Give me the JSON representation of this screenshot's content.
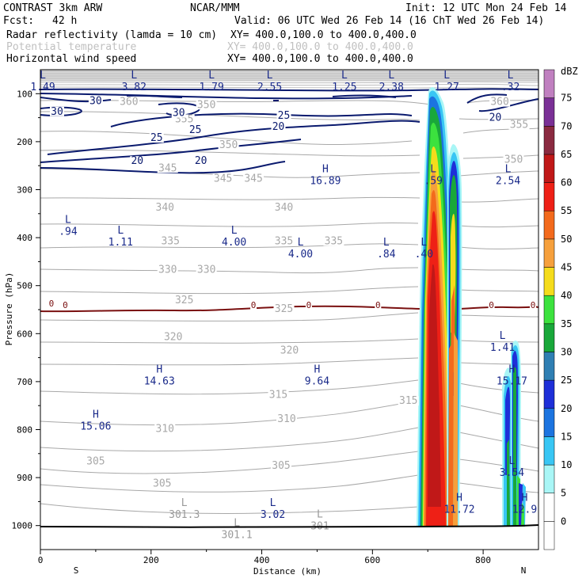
{
  "header": {
    "model": "CONTRAST  3km ARW",
    "org": "NCAR/MMM",
    "init": "Init: 12 UTC Mon 24 Feb 14",
    "fcst_label": "Fcst:",
    "fcst_value": "42 h",
    "valid": "Valid: 06 UTC Wed 26 Feb 14 (16 ChT Wed 26 Feb 14)",
    "line1_name": "Radar reflectivity (lamda = 10 cm)",
    "line1_xy": "XY= 400.0,100.0 to 400.0,400.0",
    "line2_name": "Potential temperature",
    "line2_xy": "XY= 400.0,100.0 to 400.0,400.0",
    "line3_name": "Horizontal wind speed",
    "line3_xy": "XY= 400.0,100.0 to 400.0,400.0"
  },
  "colors": {
    "wind": "#0a1a6e",
    "theta": "#a8a8a8",
    "freezing": "#7a1010",
    "hl": "#1a2a8a",
    "hl_theta": "#9a9a9a"
  },
  "chart_data": {
    "type": "cross-section",
    "xlabel": "Distance (km)",
    "ylabel": "Pressure (hPa)",
    "xlim": [
      0,
      900
    ],
    "ylim": [
      1050,
      50
    ],
    "x_ticks": [
      "0",
      "200",
      "400",
      "600",
      "800"
    ],
    "y_ticks": [
      "100",
      "200",
      "300",
      "400",
      "500",
      "600",
      "700",
      "800",
      "900",
      "1000"
    ],
    "end_left": "S",
    "end_right": "N",
    "colorbar": {
      "unit": "dBZ",
      "levels": [
        "0",
        "5",
        "10",
        "15",
        "20",
        "25",
        "30",
        "35",
        "40",
        "45",
        "50",
        "55",
        "60",
        "65",
        "70",
        "75"
      ],
      "colors": [
        "#ffffff",
        "#a9f6f6",
        "#38c6f4",
        "#1c74e0",
        "#1e2fd8",
        "#2f7fb3",
        "#19a83a",
        "#3ce23e",
        "#f5dc1c",
        "#f6a03c",
        "#f36a1c",
        "#ee2016",
        "#c01818",
        "#8a2a40",
        "#7a3096",
        "#c080c0"
      ]
    },
    "theta_labels": [
      {
        "t": "360",
        "x": 160,
        "p": 122
      },
      {
        "t": "350",
        "x": 300,
        "p": 128
      },
      {
        "t": "360",
        "x": 830,
        "p": 122
      },
      {
        "t": "355",
        "x": 260,
        "p": 158
      },
      {
        "t": "355",
        "x": 865,
        "p": 170
      },
      {
        "t": "350",
        "x": 340,
        "p": 212
      },
      {
        "t": "350",
        "x": 855,
        "p": 242
      },
      {
        "t": "345",
        "x": 230,
        "p": 260
      },
      {
        "t": "345",
        "x": 385,
        "p": 282
      },
      {
        "t": "345",
        "x": 330,
        "p": 282
      },
      {
        "t": "340",
        "x": 225,
        "p": 342
      },
      {
        "t": "340",
        "x": 440,
        "p": 342
      },
      {
        "t": "335",
        "x": 235,
        "p": 412
      },
      {
        "t": "335",
        "x": 440,
        "p": 412
      },
      {
        "t": "335",
        "x": 530,
        "p": 412
      },
      {
        "t": "330",
        "x": 230,
        "p": 472
      },
      {
        "t": "330",
        "x": 300,
        "p": 472
      },
      {
        "t": "325",
        "x": 260,
        "p": 535
      },
      {
        "t": "325",
        "x": 440,
        "p": 553
      },
      {
        "t": "320",
        "x": 240,
        "p": 612
      },
      {
        "t": "320",
        "x": 450,
        "p": 640
      },
      {
        "t": "315",
        "x": 430,
        "p": 732
      },
      {
        "t": "315",
        "x": 665,
        "p": 745
      },
      {
        "t": "310",
        "x": 225,
        "p": 803
      },
      {
        "t": "310",
        "x": 445,
        "p": 783
      },
      {
        "t": "305",
        "x": 100,
        "p": 871
      },
      {
        "t": "305",
        "x": 435,
        "p": 880
      },
      {
        "t": "305",
        "x": 220,
        "p": 917
      }
    ],
    "wind_labels": [
      {
        "t": "30",
        "x": 100,
        "p": 120
      },
      {
        "t": "30",
        "x": 30,
        "p": 142
      },
      {
        "t": "30",
        "x": 250,
        "p": 145
      },
      {
        "t": "25",
        "x": 440,
        "p": 151
      },
      {
        "t": "25",
        "x": 280,
        "p": 180
      },
      {
        "t": "25",
        "x": 210,
        "p": 197
      },
      {
        "t": "20",
        "x": 430,
        "p": 174
      },
      {
        "t": "20",
        "x": 822,
        "p": 155
      },
      {
        "t": "20",
        "x": 175,
        "p": 245
      },
      {
        "t": "20",
        "x": 290,
        "p": 245
      }
    ],
    "freezing_labels": [
      {
        "t": "0",
        "x": 20,
        "p": 542
      },
      {
        "t": "0",
        "x": 45,
        "p": 545
      },
      {
        "t": "0",
        "x": 385,
        "p": 545
      },
      {
        "t": "0",
        "x": 485,
        "p": 545
      },
      {
        "t": "0",
        "x": 610,
        "p": 545
      },
      {
        "t": "0",
        "x": 815,
        "p": 545
      },
      {
        "t": "0",
        "x": 890,
        "p": 545
      }
    ],
    "hl_top": [
      {
        "h": "L",
        "v": "1.49",
        "x": 0
      },
      {
        "h": "L",
        "v": "3.82",
        "x": 165
      },
      {
        "h": "L",
        "v": "1.79",
        "x": 305
      },
      {
        "h": "L",
        "v": "2.55",
        "x": 410
      },
      {
        "h": "L",
        "v": "1.25",
        "x": 545
      },
      {
        "h": "L",
        "v": "2.38",
        "x": 630
      },
      {
        "h": "L",
        "v": "1.27",
        "x": 730
      },
      {
        "h": "L",
        "v": ".32",
        "x": 845
      }
    ],
    "hl": [
      {
        "h": "H",
        "v": "16.89",
        "x": 515,
        "p": 270
      },
      {
        "h": "L",
        "v": ".59",
        "x": 710,
        "p": 270
      },
      {
        "h": "L",
        "v": "2.54",
        "x": 845,
        "p": 270
      },
      {
        "h": "L",
        "v": ".94",
        "x": 50,
        "p": 376
      },
      {
        "h": "L",
        "v": "1.11",
        "x": 145,
        "p": 398
      },
      {
        "h": "L",
        "v": "4.00",
        "x": 350,
        "p": 398
      },
      {
        "h": "L",
        "v": "4.00",
        "x": 470,
        "p": 423
      },
      {
        "h": "L",
        "v": ".84",
        "x": 625,
        "p": 423
      },
      {
        "h": "L",
        "v": ".40",
        "x": 693,
        "p": 423
      },
      {
        "h": "L",
        "v": "1.41",
        "x": 835,
        "p": 618
      },
      {
        "h": "H",
        "v": "14.63",
        "x": 215,
        "p": 688
      },
      {
        "h": "H",
        "v": "9.64",
        "x": 500,
        "p": 688
      },
      {
        "h": "H",
        "v": "15.17",
        "x": 852,
        "p": 688
      },
      {
        "h": "H",
        "v": "15.06",
        "x": 100,
        "p": 782
      },
      {
        "h": "L",
        "v": "3.54",
        "x": 852,
        "p": 878
      },
      {
        "h": "H",
        "v": "11.72",
        "x": 757,
        "p": 955
      },
      {
        "h": "H",
        "v": "12.9",
        "x": 875,
        "p": 955
      },
      {
        "h": "L",
        "v": "3.02",
        "x": 420,
        "p": 966
      }
    ],
    "hl_theta": [
      {
        "h": "L",
        "v": "301.3",
        "x": 260,
        "p": 966
      },
      {
        "h": "L",
        "v": "301",
        "x": 505,
        "p": 990
      },
      {
        "h": "L",
        "v": "301.1",
        "x": 355,
        "p": 1008
      }
    ]
  }
}
